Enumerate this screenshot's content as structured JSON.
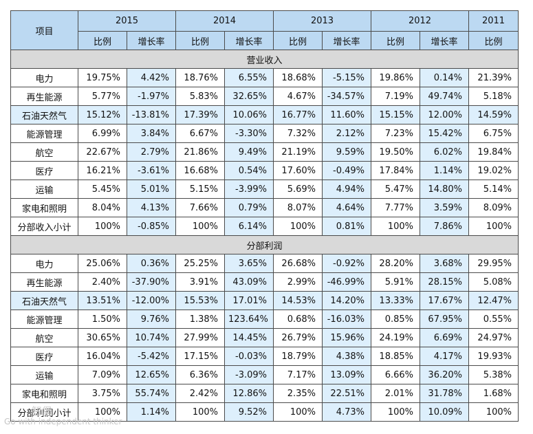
{
  "table": {
    "corner_label": "项目",
    "years": [
      "2015",
      "2014",
      "2013",
      "2012",
      "2011"
    ],
    "sub_ratio": "比例",
    "sub_growth": "增长率",
    "sections": [
      {
        "title": "营业收入",
        "rows": [
          {
            "label": "电力",
            "highlight": false,
            "cells": [
              "19.75%",
              "4.42%",
              "18.76%",
              "6.55%",
              "18.68%",
              "-5.15%",
              "19.86%",
              "0.14%",
              "21.39%"
            ]
          },
          {
            "label": "再生能源",
            "highlight": false,
            "cells": [
              "5.77%",
              "-1.97%",
              "5.83%",
              "32.65%",
              "4.67%",
              "-34.57%",
              "7.19%",
              "49.74%",
              "5.18%"
            ]
          },
          {
            "label": "石油天然气",
            "highlight": true,
            "cells": [
              "15.12%",
              "-13.81%",
              "17.39%",
              "10.06%",
              "16.77%",
              "11.60%",
              "15.15%",
              "12.00%",
              "14.59%"
            ]
          },
          {
            "label": "能源管理",
            "highlight": false,
            "cells": [
              "6.99%",
              "3.84%",
              "6.67%",
              "-3.30%",
              "7.32%",
              "2.12%",
              "7.23%",
              "15.42%",
              "6.75%"
            ]
          },
          {
            "label": "航空",
            "highlight": false,
            "cells": [
              "22.67%",
              "2.79%",
              "21.86%",
              "9.49%",
              "21.19%",
              "9.59%",
              "19.50%",
              "6.02%",
              "19.84%"
            ]
          },
          {
            "label": "医疗",
            "highlight": false,
            "cells": [
              "16.21%",
              "-3.61%",
              "16.68%",
              "0.54%",
              "17.60%",
              "-0.49%",
              "17.84%",
              "1.14%",
              "19.02%"
            ]
          },
          {
            "label": "运输",
            "highlight": false,
            "cells": [
              "5.45%",
              "5.01%",
              "5.15%",
              "-3.99%",
              "5.69%",
              "4.94%",
              "5.47%",
              "14.80%",
              "5.14%"
            ]
          },
          {
            "label": "家电和照明",
            "highlight": false,
            "cells": [
              "8.04%",
              "4.13%",
              "7.66%",
              "0.79%",
              "8.07%",
              "4.64%",
              "7.77%",
              "3.59%",
              "8.09%"
            ]
          },
          {
            "label": "分部收入小计",
            "highlight": false,
            "cells": [
              "100%",
              "-0.85%",
              "100%",
              "6.14%",
              "100%",
              "0.81%",
              "100%",
              "7.86%",
              "100%"
            ]
          }
        ]
      },
      {
        "title": "分部利润",
        "rows": [
          {
            "label": "电力",
            "highlight": false,
            "cells": [
              "25.06%",
              "0.36%",
              "25.25%",
              "3.65%",
              "26.68%",
              "-0.92%",
              "28.20%",
              "3.68%",
              "29.95%"
            ]
          },
          {
            "label": "再生能源",
            "highlight": false,
            "cells": [
              "2.40%",
              "-37.90%",
              "3.91%",
              "43.09%",
              "2.99%",
              "-46.99%",
              "5.91%",
              "28.15%",
              "5.08%"
            ]
          },
          {
            "label": "石油天然气",
            "highlight": true,
            "cells": [
              "13.51%",
              "-12.00%",
              "15.53%",
              "17.01%",
              "14.53%",
              "14.20%",
              "13.33%",
              "17.67%",
              "12.47%"
            ]
          },
          {
            "label": "能源管理",
            "highlight": false,
            "cells": [
              "1.50%",
              "9.76%",
              "1.38%",
              "123.64%",
              "0.68%",
              "-16.03%",
              "0.85%",
              "67.95%",
              "0.55%"
            ]
          },
          {
            "label": "航空",
            "highlight": false,
            "cells": [
              "30.65%",
              "10.74%",
              "27.99%",
              "14.45%",
              "26.79%",
              "15.96%",
              "24.19%",
              "6.69%",
              "24.97%"
            ]
          },
          {
            "label": "医疗",
            "highlight": false,
            "cells": [
              "16.04%",
              "-5.42%",
              "17.15%",
              "-0.03%",
              "18.79%",
              "4.38%",
              "18.85%",
              "4.17%",
              "19.93%"
            ]
          },
          {
            "label": "运输",
            "highlight": false,
            "cells": [
              "7.09%",
              "12.65%",
              "6.36%",
              "-3.09%",
              "7.17%",
              "13.09%",
              "6.66%",
              "36.20%",
              "5.38%"
            ]
          },
          {
            "label": "家电和照明",
            "highlight": false,
            "cells": [
              "3.75%",
              "55.74%",
              "2.42%",
              "12.86%",
              "2.35%",
              "22.51%",
              "2.01%",
              "31.78%",
              "1.68%"
            ]
          },
          {
            "label": "分部利润小计",
            "highlight": false,
            "cells": [
              "100%",
              "1.14%",
              "100%",
              "9.52%",
              "100%",
              "4.73%",
              "100%",
              "10.09%",
              "100%"
            ]
          }
        ]
      }
    ]
  },
  "watermark": {
    "brand": "智堡",
    "tagline": "Go with independent thinker"
  }
}
